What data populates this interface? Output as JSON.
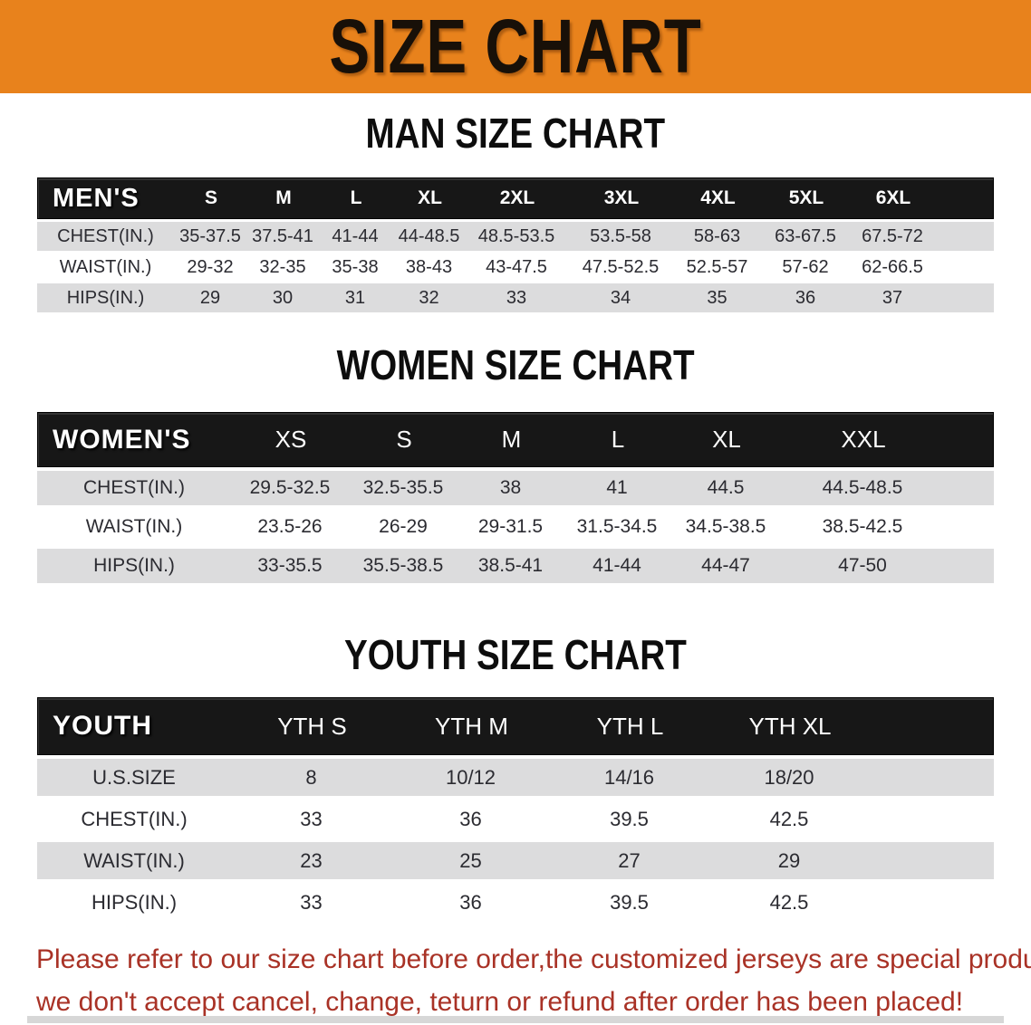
{
  "banner": {
    "title": "SIZE CHART"
  },
  "colors": {
    "banner_bg": "#E8821C",
    "table_header_bg": "#171717",
    "row_alt_gray": "#DCDCDD",
    "table_text": "#2B2B31",
    "disclaimer_red": "#A93226"
  },
  "men": {
    "heading": "MAN SIZE CHART",
    "label": "MEN'S",
    "columns": [
      "S",
      "M",
      "L",
      "XL",
      "2XL",
      "3XL",
      "4XL",
      "5XL",
      "6XL"
    ],
    "rows": [
      {
        "label": "CHEST(IN.)",
        "values": [
          "35-37.5",
          "37.5-41",
          "41-44",
          "44-48.5",
          "48.5-53.5",
          "53.5-58",
          "58-63",
          "63-67.5",
          "67.5-72"
        ]
      },
      {
        "label": "WAIST(IN.)",
        "values": [
          "29-32",
          "32-35",
          "35-38",
          "38-43",
          "43-47.5",
          "47.5-52.5",
          "52.5-57",
          "57-62",
          "62-66.5"
        ]
      },
      {
        "label": "HIPS(IN.)",
        "values": [
          "29",
          "30",
          "31",
          "32",
          "33",
          "34",
          "35",
          "36",
          "37"
        ]
      }
    ]
  },
  "women": {
    "heading": "WOMEN SIZE CHART",
    "label": "WOMEN'S",
    "columns": [
      "XS",
      "S",
      "M",
      "L",
      "XL",
      "XXL"
    ],
    "rows": [
      {
        "label": "CHEST(IN.)",
        "values": [
          "29.5-32.5",
          "32.5-35.5",
          "38",
          "41",
          "44.5",
          "44.5-48.5"
        ]
      },
      {
        "label": "WAIST(IN.)",
        "values": [
          "23.5-26",
          "26-29",
          "29-31.5",
          "31.5-34.5",
          "34.5-38.5",
          "38.5-42.5"
        ]
      },
      {
        "label": "HIPS(IN.)",
        "values": [
          "33-35.5",
          "35.5-38.5",
          "38.5-41",
          "41-44",
          "44-47",
          "47-50"
        ]
      }
    ]
  },
  "youth": {
    "heading": "YOUTH SIZE CHART",
    "label": "YOUTH",
    "columns": [
      "YTH S",
      "YTH M",
      "YTH L",
      "YTH XL"
    ],
    "rows": [
      {
        "label": "U.S.SIZE",
        "values": [
          "8",
          "10/12",
          "14/16",
          "18/20"
        ]
      },
      {
        "label": "CHEST(IN.)",
        "values": [
          "33",
          "36",
          "39.5",
          "42.5"
        ]
      },
      {
        "label": "WAIST(IN.)",
        "values": [
          "23",
          "25",
          "27",
          "29"
        ]
      },
      {
        "label": "HIPS(IN.)",
        "values": [
          "33",
          "36",
          "39.5",
          "42.5"
        ]
      }
    ]
  },
  "disclaimer": {
    "line1": "Please refer to our size chart before order,the customized jerseys are special products,",
    "line2": "we don't accept cancel, change, teturn or refund after order has been placed!"
  }
}
